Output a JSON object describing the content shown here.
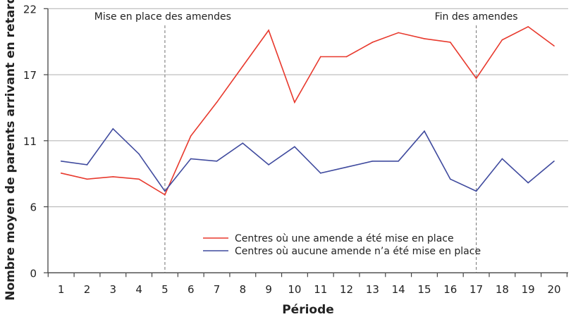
{
  "chart_data": {
    "type": "line",
    "title": "",
    "xlabel": "Période",
    "ylabel": "Nombre moyen de parents arrivant en retard",
    "x": [
      1,
      2,
      3,
      4,
      5,
      6,
      7,
      8,
      9,
      10,
      11,
      12,
      13,
      14,
      15,
      16,
      17,
      18,
      19,
      20
    ],
    "ylim": [
      0,
      22
    ],
    "yticks": [
      0,
      5.5,
      11,
      16.5,
      22
    ],
    "ytick_labels": [
      "0",
      "6",
      "11",
      "17",
      "22"
    ],
    "grid": "horizontal",
    "legend_position": "bottom-center",
    "series": [
      {
        "name": "Centres où une amende a été mise en place",
        "color": "#e8392d",
        "values": [
          8.3,
          7.8,
          8.0,
          7.8,
          6.5,
          11.4,
          14.2,
          17.2,
          20.2,
          14.2,
          18.0,
          18.0,
          19.2,
          20.0,
          19.5,
          19.2,
          16.2,
          19.4,
          20.5,
          18.9
        ]
      },
      {
        "name": "Centres où aucune amende n’a été mise en place",
        "color": "#3f4a9e",
        "values": [
          9.3,
          9.0,
          12.0,
          9.9,
          6.8,
          9.5,
          9.3,
          10.8,
          9.0,
          10.5,
          8.3,
          8.8,
          9.3,
          9.3,
          11.8,
          7.8,
          6.8,
          9.5,
          7.5,
          9.3
        ]
      }
    ],
    "annotations": [
      {
        "x": 5,
        "label": "Mise en place des amendes"
      },
      {
        "x": 17,
        "label": "Fin des amendes"
      }
    ]
  }
}
